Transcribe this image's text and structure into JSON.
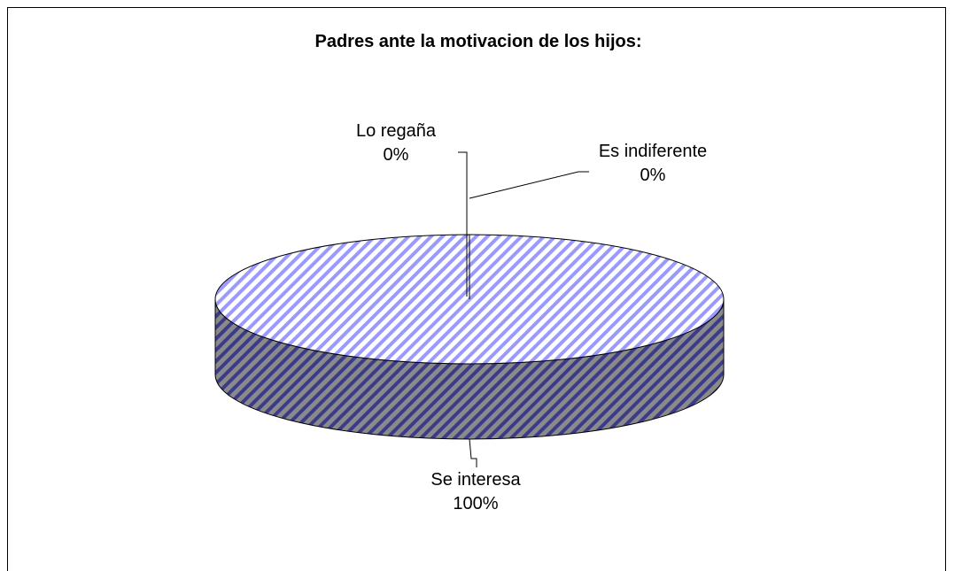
{
  "chart_data": {
    "type": "pie3d",
    "title": "Padres ante la motivacion de los hijos:",
    "categories": [
      "Se interesa",
      "Lo regaña",
      "Es indiferente"
    ],
    "values": [
      100,
      0,
      0
    ],
    "value_labels": [
      "100%",
      "0%",
      "0%"
    ],
    "color": "#9999ff"
  }
}
